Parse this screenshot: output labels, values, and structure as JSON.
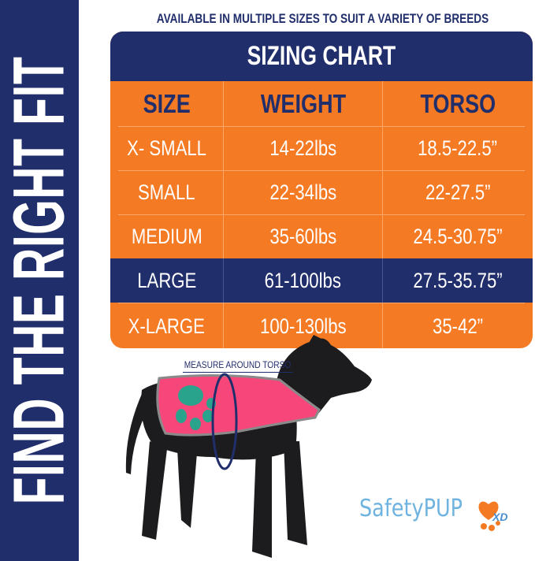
{
  "side_banner": "FIND THE RIGHT FIT",
  "subtitle": "AVAILABLE IN MULTIPLE SIZES TO SUIT A VARIETY OF BREEDS",
  "chart": {
    "title": "SIZING CHART",
    "headers": [
      "SIZE",
      "WEIGHT",
      "TORSO"
    ],
    "rows": [
      [
        "X- SMALL",
        "14-22lbs",
        "18.5-22.5”"
      ],
      [
        "SMALL",
        "22-34lbs",
        "22-27.5”"
      ],
      [
        "MEDIUM",
        "35-60lbs",
        "24.5-30.75”"
      ],
      [
        "LARGE",
        "61-100lbs",
        "27.5-35.75”"
      ],
      [
        "X-LARGE",
        "100-130lbs",
        "35-42”"
      ]
    ],
    "highlighted_row": "LARGE"
  },
  "measure_label": "MEASURE AROUND TORSO",
  "logo": {
    "text": "SafetyPUP",
    "suffix": "XD"
  },
  "colors": {
    "navy": "#212e6c",
    "orange": "#f47a24",
    "vest_pink": "#f7477a",
    "logo_blue": "#6fb3e0"
  }
}
